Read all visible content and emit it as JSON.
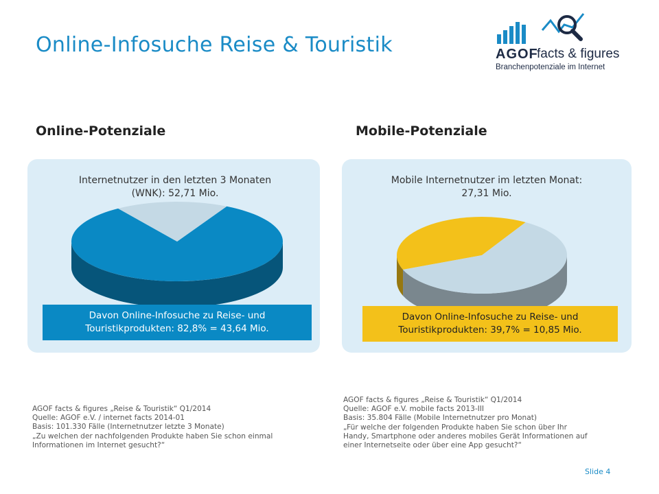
{
  "title": "Online-Infosuche Reise & Touristik",
  "logo": {
    "brand": "AGOF",
    "tagline": "facts & figures",
    "subtitle": "Branchenpotenziale im Internet"
  },
  "colors": {
    "accent": "#1a8bc6",
    "online_highlight": "#0a89c4",
    "mobile_highlight": "#f3c11a",
    "remainder": "#c4d9e5",
    "panel_bg": "#dcedf7"
  },
  "online": {
    "heading": "Online-Potenziale",
    "caption_lines": [
      "Internetnutzer in den letzten 3 Monaten",
      "(WNK): 52,71 Mio."
    ],
    "callout_lines": [
      "Davon Online-Infosuche zu Reise- und",
      "Touristikprodukten: 82,8% = 43,64 Mio."
    ],
    "source_lines": [
      "AGOF facts & figures „Reise & Touristik“ Q1/2014",
      "Quelle: AGOF e.V. / internet facts 2014-01",
      "Basis: 101.330 Fälle (Internetnutzer letzte 3 Monate)",
      "„Zu welchen der nachfolgenden Produkte haben Sie schon einmal",
      "Informationen im Internet gesucht?“"
    ]
  },
  "mobile": {
    "heading": "Mobile-Potenziale",
    "caption_lines": [
      "Mobile Internetnutzer im letzten Monat:",
      "27,31 Mio."
    ],
    "callout_lines": [
      "Davon Online-Infosuche zu Reise- und",
      "Touristikprodukten: 39,7% = 10,85 Mio."
    ],
    "source_lines": [
      "AGOF facts & figures „Reise & Touristik“ Q1/2014",
      "Quelle: AGOF e.V. mobile facts 2013-III",
      "Basis: 35.804 Fälle (Mobile Internetnutzer pro Monat)",
      "„Für welche der folgenden Produkte haben Sie schon über Ihr",
      "Handy, Smartphone oder anderes mobiles Gerät Informationen auf",
      "einer Internetseite oder über eine App gesucht?“"
    ]
  },
  "chart_data": [
    {
      "type": "pie",
      "categories": [
        "Online-Infosuche zu Reise- und Touristikprodukten",
        ""
      ],
      "values": [
        82.8,
        17.2
      ],
      "colors": [
        "#0a89c4",
        "#c4d9e5"
      ]
    },
    {
      "type": "pie",
      "categories": [
        "Online-Infosuche zu Reise- und Touristikprodukten",
        ""
      ],
      "values": [
        39.7,
        60.3
      ],
      "colors": [
        "#f3c11a",
        "#c4d9e5"
      ]
    }
  ],
  "slide": "Slide 4"
}
